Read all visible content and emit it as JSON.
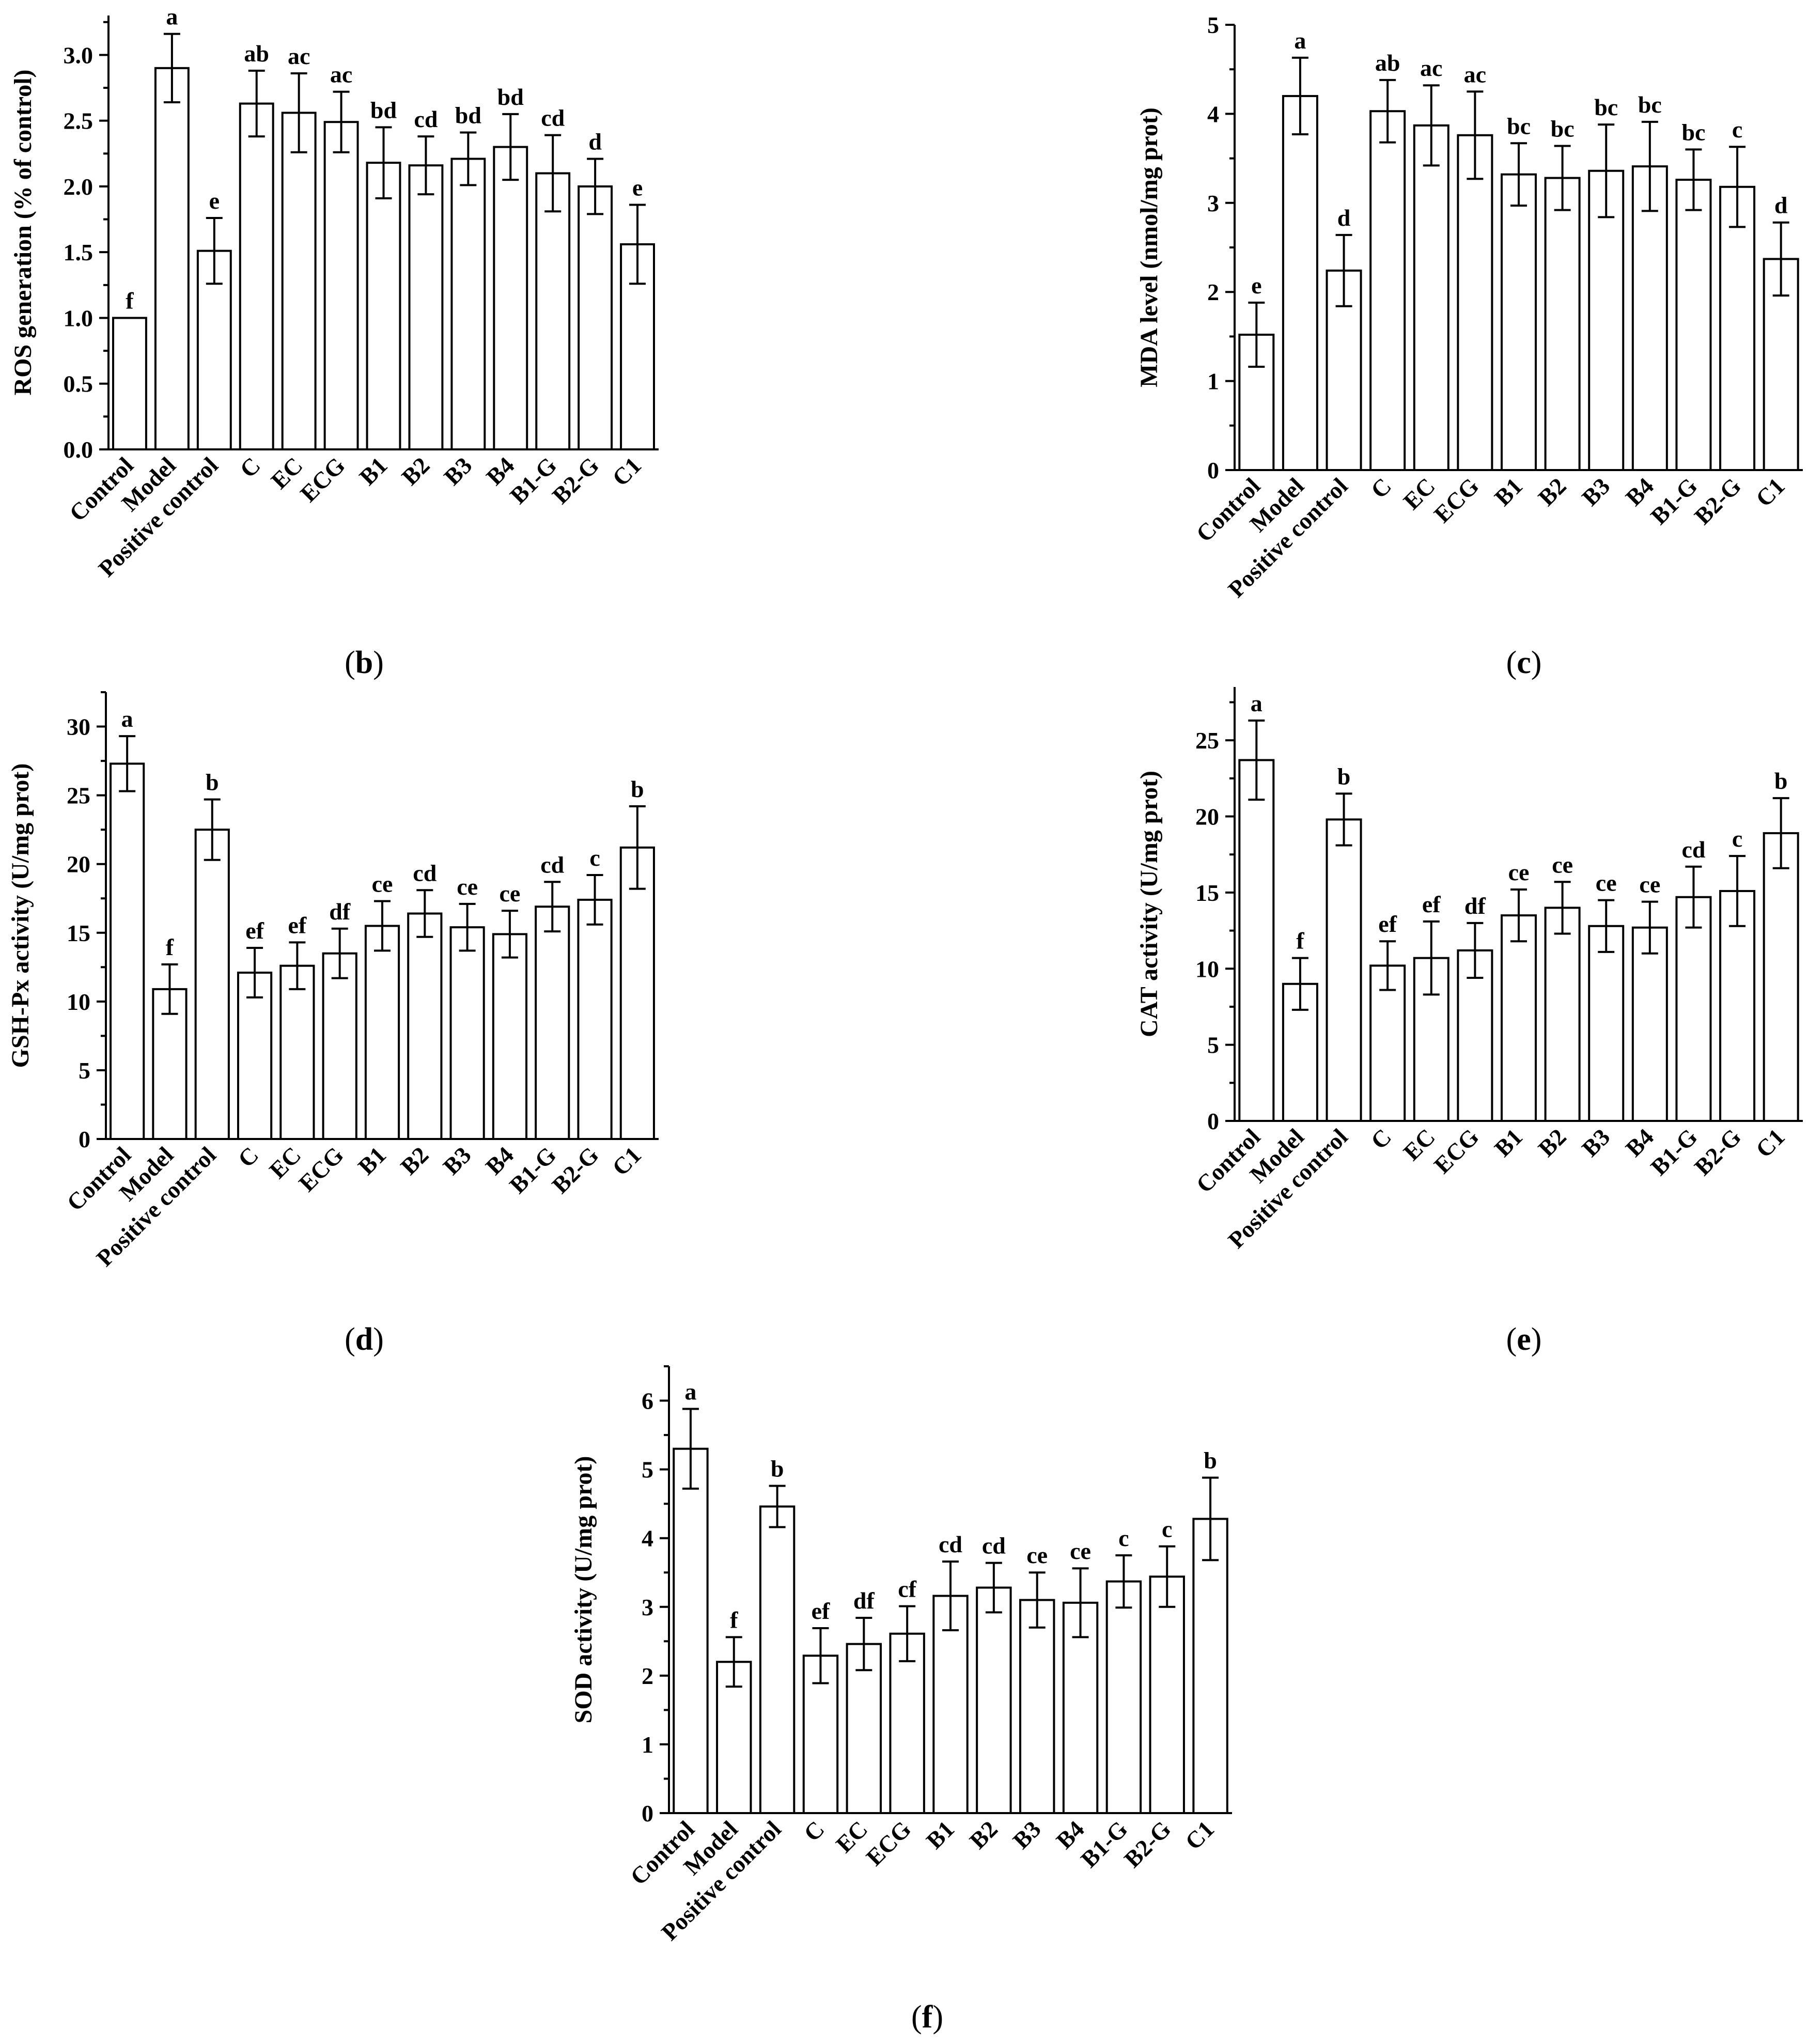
{
  "figure": {
    "categories": [
      "Control",
      "Model",
      "Positive control",
      "C",
      "EC",
      "ECG",
      "B1",
      "B2",
      "B3",
      "B4",
      "B1-G",
      "B2-G",
      "C1"
    ],
    "style": {
      "bar_fill": "#ffffff",
      "stroke": "#000000"
    }
  },
  "chart_data": [
    {
      "panel": "b",
      "caption_open": "(",
      "caption_letter": "b",
      "caption_close": ")",
      "type": "bar",
      "ylabel": "ROS generation (% of control)",
      "ylim": [
        0,
        3.3
      ],
      "yticks": [
        0.0,
        0.5,
        1.0,
        1.5,
        2.0,
        2.5,
        3.0
      ],
      "tick_decimals": 1,
      "grid": false,
      "values": [
        1.0,
        2.9,
        1.51,
        2.63,
        2.56,
        2.49,
        2.18,
        2.16,
        2.21,
        2.3,
        2.1,
        2.0,
        1.56
      ],
      "errors": [
        0,
        0.26,
        0.25,
        0.25,
        0.3,
        0.23,
        0.27,
        0.22,
        0.2,
        0.25,
        0.29,
        0.21,
        0.3
      ],
      "letters": [
        "f",
        "a",
        "e",
        "ab",
        "ac",
        "ac",
        "bd",
        "cd",
        "bd",
        "bd",
        "cd",
        "d",
        "e"
      ]
    },
    {
      "panel": "c",
      "caption_open": "(",
      "caption_letter": "c",
      "caption_close": ")",
      "type": "bar",
      "ylabel": "MDA level (nmol/mg prot)",
      "ylim": [
        0,
        5
      ],
      "yticks": [
        0,
        1,
        2,
        3,
        4,
        5
      ],
      "tick_decimals": 0,
      "grid": false,
      "values": [
        1.52,
        4.2,
        2.24,
        4.03,
        3.87,
        3.76,
        3.32,
        3.28,
        3.36,
        3.41,
        3.26,
        3.18,
        2.37
      ],
      "errors": [
        0.36,
        0.43,
        0.4,
        0.35,
        0.45,
        0.49,
        0.35,
        0.36,
        0.52,
        0.5,
        0.34,
        0.45,
        0.41
      ],
      "letters": [
        "e",
        "a",
        "d",
        "ab",
        "ac",
        "ac",
        "bc",
        "bc",
        "bc",
        "bc",
        "bc",
        "c",
        "d"
      ]
    },
    {
      "panel": "d",
      "caption_open": "(",
      "caption_letter": "d",
      "caption_close": ")",
      "type": "bar",
      "ylabel": "GSH-Px activity (U/mg prot)",
      "ylim": [
        0,
        32.5
      ],
      "yticks": [
        0,
        5,
        10,
        15,
        20,
        25,
        30
      ],
      "tick_decimals": 0,
      "grid": false,
      "values": [
        27.3,
        10.9,
        22.5,
        12.1,
        12.6,
        13.5,
        15.5,
        16.4,
        15.4,
        14.9,
        16.9,
        17.4,
        21.2
      ],
      "errors": [
        2.0,
        1.8,
        2.2,
        1.8,
        1.7,
        1.8,
        1.8,
        1.7,
        1.7,
        1.7,
        1.8,
        1.8,
        3.0
      ],
      "letters": [
        "a",
        "f",
        "b",
        "ef",
        "ef",
        "df",
        "ce",
        "cd",
        "ce",
        "ce",
        "cd",
        "c",
        "b"
      ]
    },
    {
      "panel": "e",
      "caption_open": "(",
      "caption_letter": "e",
      "caption_close": ")",
      "type": "bar",
      "ylabel": "CAT activity (U/mg prot)",
      "ylim": [
        0,
        28.5
      ],
      "yticks": [
        0,
        5,
        10,
        15,
        20,
        25
      ],
      "tick_decimals": 0,
      "grid": false,
      "values": [
        23.7,
        9.0,
        19.8,
        10.2,
        10.7,
        11.2,
        13.5,
        14.0,
        12.8,
        12.7,
        14.7,
        15.1,
        18.9
      ],
      "errors": [
        2.6,
        1.7,
        1.7,
        1.6,
        2.4,
        1.8,
        1.7,
        1.7,
        1.7,
        1.7,
        2.0,
        2.3,
        2.3
      ],
      "letters": [
        "a",
        "f",
        "b",
        "ef",
        "ef",
        "df",
        "ce",
        "ce",
        "ce",
        "ce",
        "cd",
        "c",
        "b"
      ]
    },
    {
      "panel": "f",
      "caption_open": "(",
      "caption_letter": "f",
      "caption_close": ")",
      "type": "bar",
      "ylabel": "SOD activity (U/mg prot)",
      "ylim": [
        0,
        6.5
      ],
      "yticks": [
        0,
        1,
        2,
        3,
        4,
        5,
        6
      ],
      "tick_decimals": 0,
      "grid": false,
      "values": [
        5.3,
        2.2,
        4.46,
        2.29,
        2.46,
        2.61,
        3.16,
        3.28,
        3.1,
        3.06,
        3.37,
        3.44,
        4.28
      ],
      "errors": [
        0.58,
        0.36,
        0.3,
        0.4,
        0.38,
        0.4,
        0.5,
        0.36,
        0.4,
        0.5,
        0.38,
        0.44,
        0.6
      ],
      "letters": [
        "a",
        "f",
        "b",
        "ef",
        "df",
        "cf",
        "cd",
        "cd",
        "ce",
        "ce",
        "c",
        "c",
        "b"
      ]
    }
  ]
}
